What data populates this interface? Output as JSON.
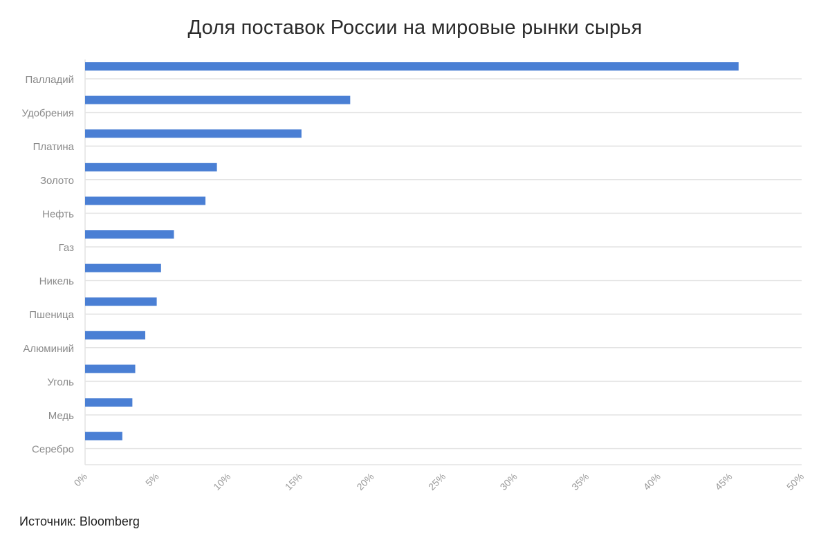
{
  "chart_data": {
    "type": "bar",
    "orientation": "horizontal",
    "title": "Доля поставок России на мировые рынки сырья",
    "categories": [
      "Палладий",
      "Удобрения",
      "Платина",
      "Золото",
      "Нефть",
      "Газ",
      "Никель",
      "Пшеница",
      "Алюминий",
      "Уголь",
      "Медь",
      "Серебро"
    ],
    "values": [
      45.6,
      18.5,
      15.1,
      9.2,
      8.4,
      6.2,
      5.3,
      5.0,
      4.2,
      3.5,
      3.3,
      2.6
    ],
    "xlim": [
      0,
      50
    ],
    "x_ticks": [
      0,
      5,
      10,
      15,
      20,
      25,
      30,
      35,
      40,
      45,
      50
    ],
    "x_tick_labels": [
      "0%",
      "5%",
      "10%",
      "15%",
      "20%",
      "25%",
      "30%",
      "35%",
      "40%",
      "45%",
      "50%"
    ],
    "xlabel": "",
    "ylabel": "",
    "grid": true,
    "legend": "none",
    "bar_color": "#4a7fd4",
    "source": "Источник: Bloomberg"
  }
}
